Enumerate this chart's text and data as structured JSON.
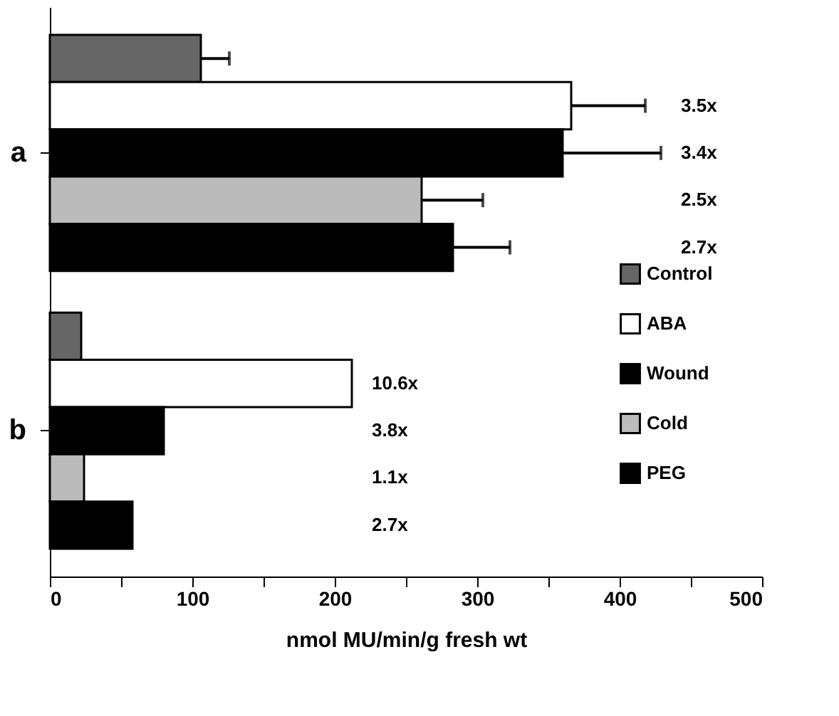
{
  "chart_data": {
    "type": "bar",
    "orientation": "horizontal",
    "xlabel": "nmol  MU/min/g  fresh  wt",
    "categories": [
      "a",
      "b"
    ],
    "annotations": [
      "3.5x",
      "3.4x",
      "2.5x",
      "2.7x",
      "10.6x",
      "3.8x",
      "1.1x",
      "2.7x"
    ],
    "series": [
      {
        "name": "Control",
        "color": "#666666",
        "values": [
          106,
          22
        ],
        "errors": [
          20,
          null
        ]
      },
      {
        "name": "ABA",
        "color": "#ffffff",
        "values": [
          366,
          212
        ],
        "errors": [
          52,
          null
        ]
      },
      {
        "name": "Wound",
        "color": "#000000",
        "values": [
          360,
          80
        ],
        "errors": [
          69,
          null
        ]
      },
      {
        "name": "Cold",
        "color": "#bbbbbb",
        "values": [
          261,
          24
        ],
        "errors": [
          43,
          null
        ]
      },
      {
        "name": "PEG",
        "color": "#000000",
        "values": [
          283,
          58
        ],
        "errors": [
          40,
          null
        ]
      }
    ],
    "xlim": [
      0,
      500
    ],
    "xticks": [
      0,
      {
        "value": 50,
        "label": null
      },
      100,
      {
        "value": 150,
        "label": null
      },
      200,
      {
        "value": 250,
        "label": null
      },
      300,
      {
        "value": 350,
        "label": null
      },
      400,
      {
        "value": 450,
        "label": null
      },
      500
    ],
    "grid": false,
    "legend": "right"
  }
}
